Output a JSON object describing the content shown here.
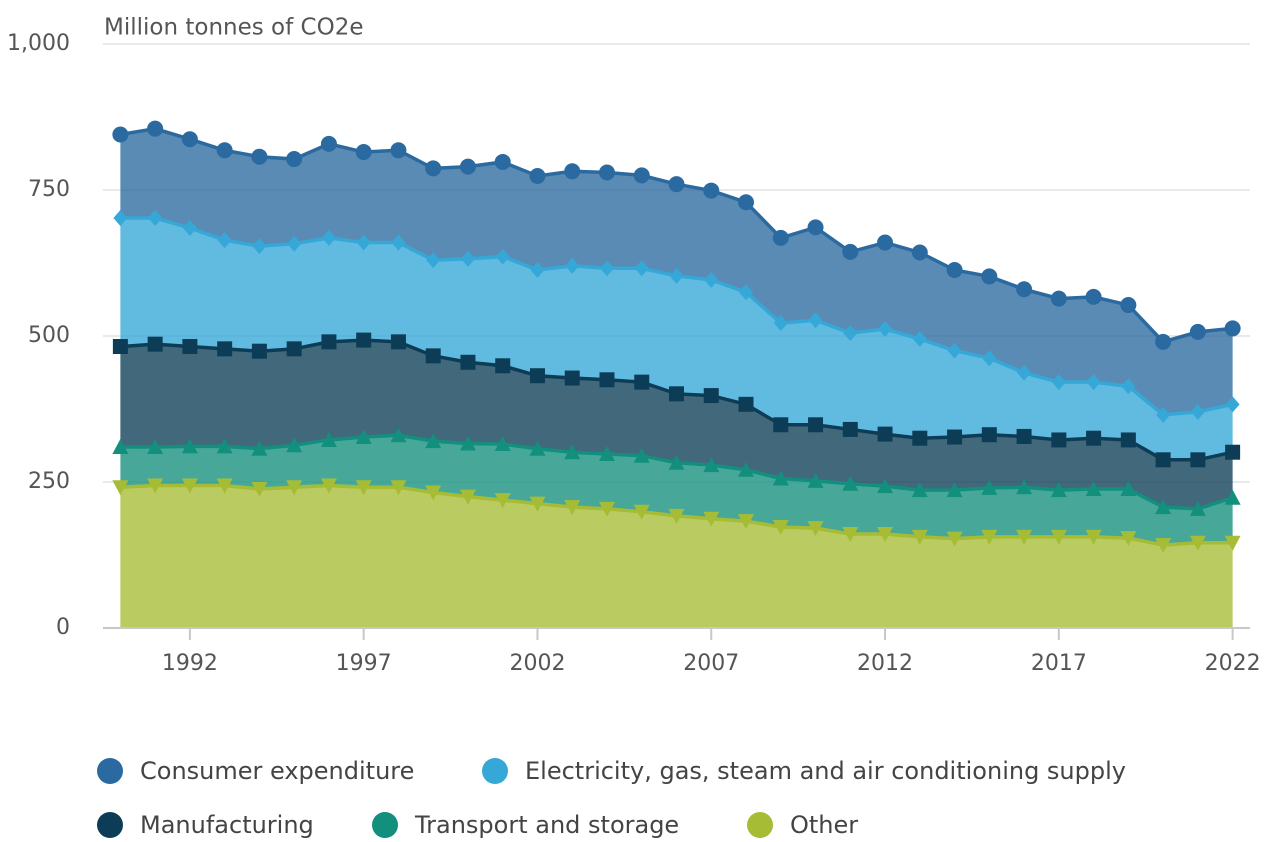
{
  "chart_data": {
    "type": "stacked_area",
    "y_label": "Million tonnes of CO2e",
    "x": [
      1990,
      1991,
      1992,
      1993,
      1994,
      1995,
      1996,
      1997,
      1998,
      1999,
      2000,
      2001,
      2002,
      2003,
      2004,
      2005,
      2006,
      2007,
      2008,
      2009,
      2010,
      2011,
      2012,
      2013,
      2014,
      2015,
      2016,
      2017,
      2018,
      2019,
      2020,
      2021,
      2022
    ],
    "series": [
      {
        "name": "Consumer expenditure",
        "color": "#2b6aa0",
        "marker": "circle",
        "values": [
          143,
          153,
          152,
          154,
          153,
          145,
          161,
          155,
          158,
          157,
          158,
          162,
          161,
          162,
          164,
          159,
          157,
          153,
          154,
          146,
          159,
          139,
          148,
          148,
          138,
          140,
          143,
          143,
          146,
          139,
          125,
          137,
          130
        ]
      },
      {
        "name": "Electricity, gas, steam and air conditioning supply",
        "color": "#35a8d8",
        "marker": "diamond",
        "values": [
          220,
          216,
          203,
          186,
          180,
          180,
          178,
          167,
          170,
          164,
          177,
          187,
          181,
          192,
          191,
          195,
          202,
          198,
          192,
          174,
          179,
          165,
          180,
          170,
          148,
          131,
          109,
          99,
          96,
          92,
          77,
          82,
          82
        ]
      },
      {
        "name": "Manufacturing",
        "color": "#0d3d56",
        "marker": "square",
        "values": [
          172,
          176,
          171,
          167,
          167,
          165,
          168,
          166,
          160,
          146,
          139,
          134,
          125,
          127,
          127,
          126,
          118,
          119,
          112,
          92,
          96,
          93,
          89,
          89,
          91,
          91,
          87,
          86,
          87,
          84,
          81,
          84,
          78
        ]
      },
      {
        "name": "Transport and storage",
        "color": "#138f7e",
        "marker": "triangle-up",
        "values": [
          69,
          66,
          67,
          67,
          69,
          72,
          78,
          86,
          89,
          88,
          91,
          96,
          94,
          94,
          94,
          96,
          91,
          92,
          88,
          83,
          81,
          86,
          82,
          80,
          83,
          84,
          85,
          80,
          82,
          84,
          65,
          58,
          77
        ]
      },
      {
        "name": "Other",
        "color": "#a6bc34",
        "marker": "triangle-down",
        "values": [
          241,
          244,
          244,
          244,
          238,
          241,
          244,
          241,
          241,
          232,
          225,
          219,
          213,
          207,
          204,
          199,
          192,
          187,
          183,
          173,
          171,
          161,
          161,
          156,
          153,
          156,
          156,
          156,
          156,
          154,
          142,
          146,
          146
        ]
      }
    ],
    "xlim": [
      1989.5,
      2022.5
    ],
    "xticks": [
      1992,
      1997,
      2002,
      2007,
      2012,
      2017,
      2022
    ],
    "ylim": [
      0,
      1000
    ],
    "yticks": [
      0,
      250,
      500,
      750,
      {
        "value": 1000,
        "label": "1,000"
      }
    ],
    "grid": true
  }
}
